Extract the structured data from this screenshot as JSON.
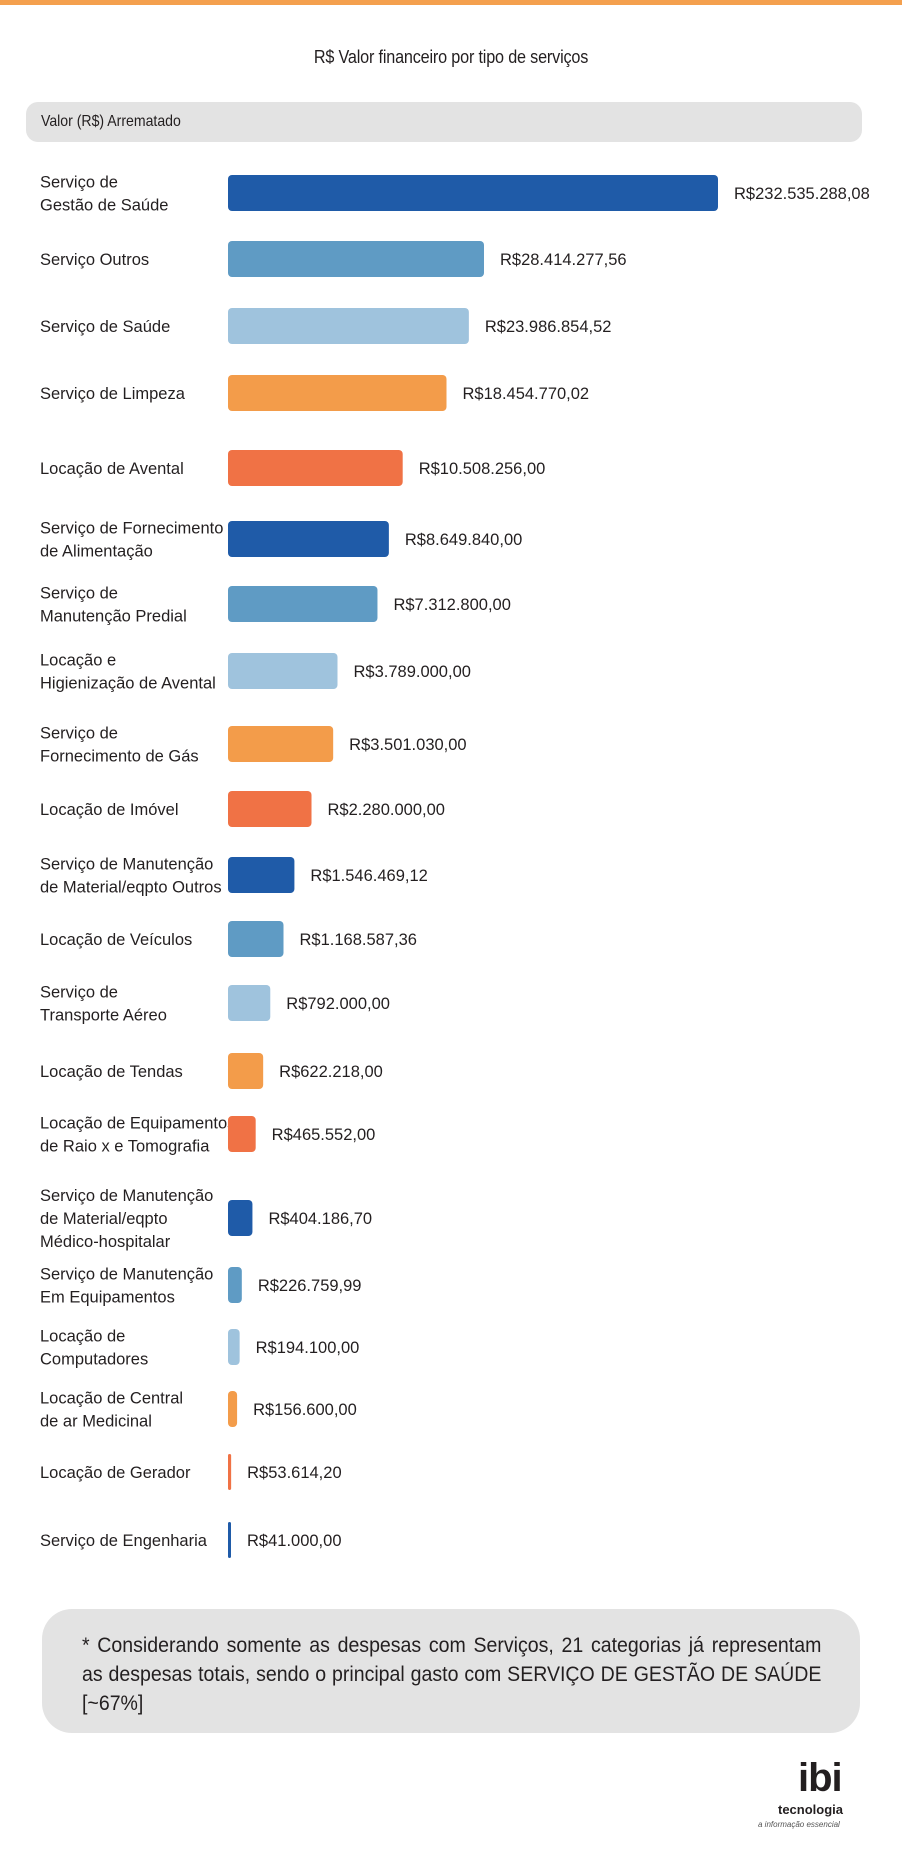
{
  "chart_data": {
    "type": "bar",
    "orientation": "horizontal",
    "title": "R$ Valor financeiro por tipo de serviços",
    "header": "Valor (R$) Arrematado",
    "categories": [
      [
        "Serviço de",
        "Gestão de Saúde"
      ],
      [
        "Serviço Outros"
      ],
      [
        "Serviço de Saúde"
      ],
      [
        "Serviço de Limpeza"
      ],
      [
        "Locação de Avental"
      ],
      [
        "Serviço de Fornecimento",
        "de Alimentação"
      ],
      [
        "Serviço de",
        "Manutenção Predial"
      ],
      [
        "Locação e",
        "Higienização de Avental"
      ],
      [
        "Serviço de",
        "Fornecimento de Gás"
      ],
      [
        "Locação de Imóvel"
      ],
      [
        "Serviço de Manutenção",
        "de Material/eqpto Outros"
      ],
      [
        "Locação de Veículos"
      ],
      [
        "Serviço de",
        "Transporte Aéreo"
      ],
      [
        "Locação de Tendas"
      ],
      [
        "Locação de Equipamentos",
        "de Raio x e Tomografia"
      ],
      [
        "Serviço de Manutenção",
        "de Material/eqpto",
        "Médico-hospitalar"
      ],
      [
        "Serviço de Manutenção",
        "Em Equipamentos"
      ],
      [
        "Locação de",
        "Computadores"
      ],
      [
        "Locação de Central",
        "de ar Medicinal"
      ],
      [
        "Locação de Gerador"
      ],
      [
        "Serviço de Engenharia"
      ]
    ],
    "values": [
      232535288.08,
      28414277.56,
      23986854.52,
      18454770.02,
      10508256.0,
      8649840.0,
      7312800.0,
      3789000.0,
      3501030.0,
      2280000.0,
      1546469.12,
      1168587.36,
      792000.0,
      622218.0,
      465552.0,
      404186.7,
      226759.99,
      194100.0,
      156600.0,
      53614.2,
      41000.0
    ],
    "value_labels": [
      "R$232.535.288,08",
      "R$28.414.277,56",
      "R$23.986.854,52",
      "R$18.454.770,02",
      "R$10.508.256,00",
      "R$8.649.840,00",
      "R$7.312.800,00",
      "R$3.789.000,00",
      "R$3.501.030,00",
      "R$2.280.000,00",
      "R$1.546.469,12",
      "R$1.168.587,36",
      "R$792.000,00",
      "R$622.218,00",
      "R$465.552,00",
      "R$404.186,70",
      "R$226.759,99",
      "R$194.100,00",
      "R$156.600,00",
      "R$53.614,20",
      "R$41.000,00"
    ],
    "colors": [
      "#1f5ba8",
      "#5f9bc4",
      "#9fc3dd",
      "#f39c4a",
      "#f07245"
    ],
    "grid": false,
    "legend": "none"
  },
  "note": "* Considerando somente as despesas com Serviços, 21 categorias já representam as despesas totais, sendo o principal gasto com SERVIÇO DE GESTÃO DE SAÚDE [~67%]",
  "logo": {
    "mark": "ibi",
    "word": "tecnologia",
    "tagline": "a informação essencial"
  }
}
